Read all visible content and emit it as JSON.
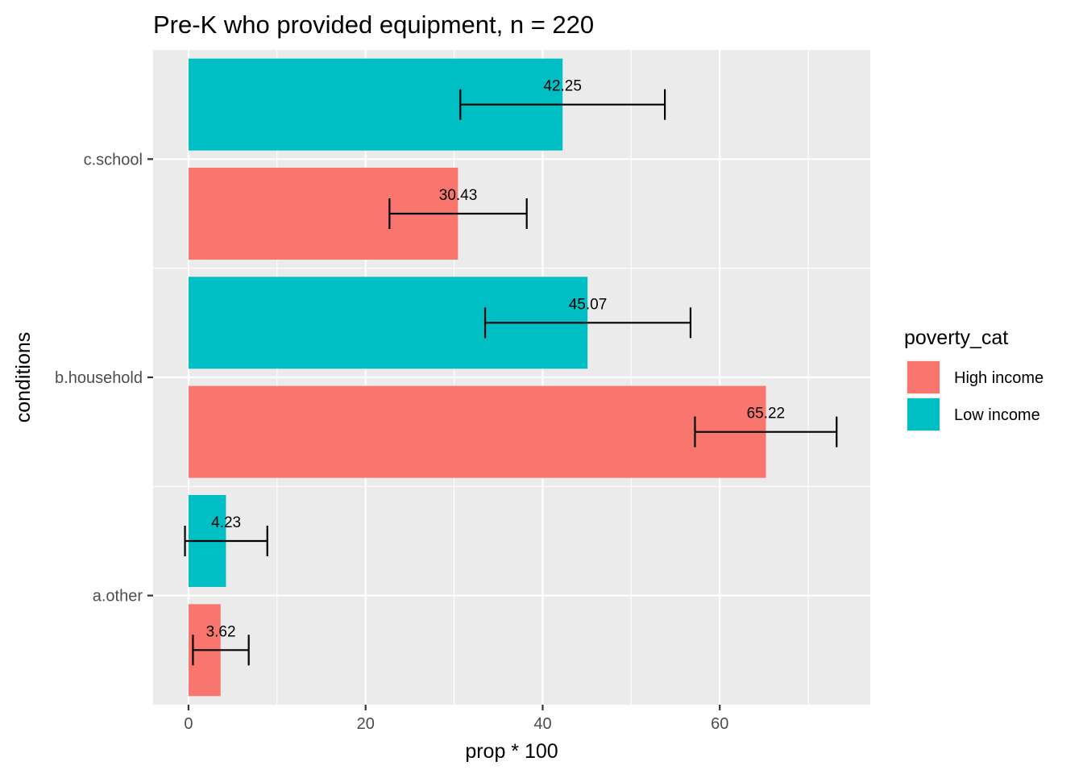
{
  "chart_data": {
    "type": "bar",
    "orientation": "horizontal",
    "title": "Pre-K who provided equipment, n = 220",
    "xlabel": "prop * 100",
    "ylabel": "conditions",
    "xlim": [
      -4,
      77
    ],
    "x_ticks": [
      0,
      20,
      40,
      60
    ],
    "x_tick_labels": [
      "0",
      "20",
      "40",
      "60"
    ],
    "categories": [
      "a.other",
      "b.household",
      "c.school"
    ],
    "legend_title": "poverty_cat",
    "legend_position": "right",
    "grid": true,
    "series": [
      {
        "name": "High income",
        "color": "#F8766D",
        "values": [
          3.62,
          65.22,
          30.43
        ],
        "labels": [
          "3.62",
          "65.22",
          "30.43"
        ],
        "error_low": [
          0.5,
          57.2,
          22.7
        ],
        "error_high": [
          6.8,
          73.2,
          38.2
        ]
      },
      {
        "name": "Low income",
        "color": "#00BFC4",
        "values": [
          4.23,
          45.07,
          42.25
        ],
        "labels": [
          "4.23",
          "45.07",
          "42.25"
        ],
        "error_low": [
          -0.4,
          33.5,
          30.7
        ],
        "error_high": [
          8.9,
          56.7,
          53.8
        ]
      }
    ]
  }
}
